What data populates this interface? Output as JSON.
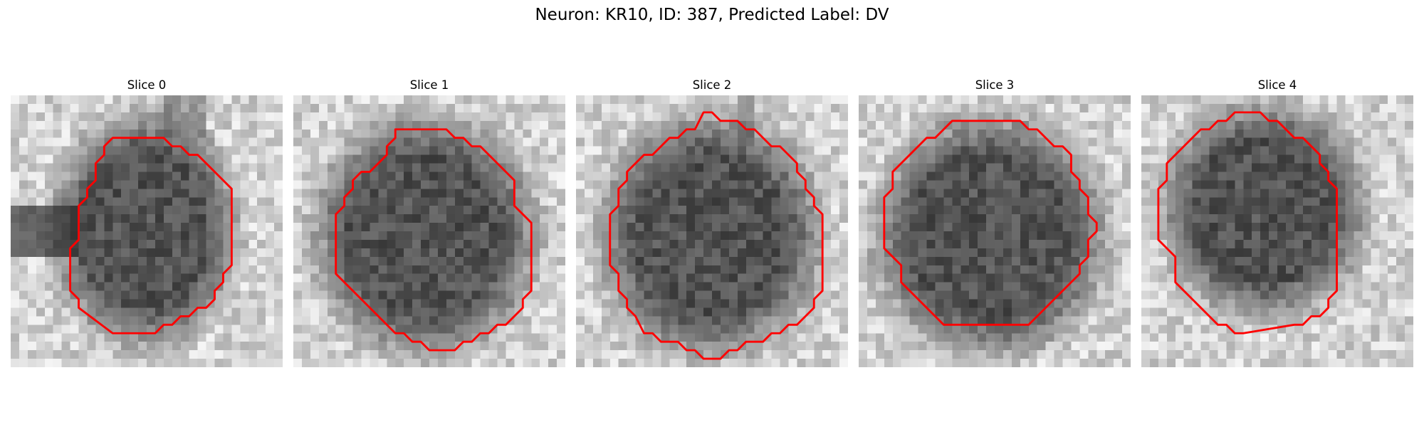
{
  "figure": {
    "title": "Neuron: KR10, ID: 387, Predicted Label: DV"
  },
  "panels": [
    {
      "title": "Slice 0"
    },
    {
      "title": "Slice 1"
    },
    {
      "title": "Slice 2"
    },
    {
      "title": "Slice 3"
    },
    {
      "title": "Slice 4"
    }
  ],
  "colors": {
    "contour": "#ff0000",
    "background": "#ffffff"
  }
}
